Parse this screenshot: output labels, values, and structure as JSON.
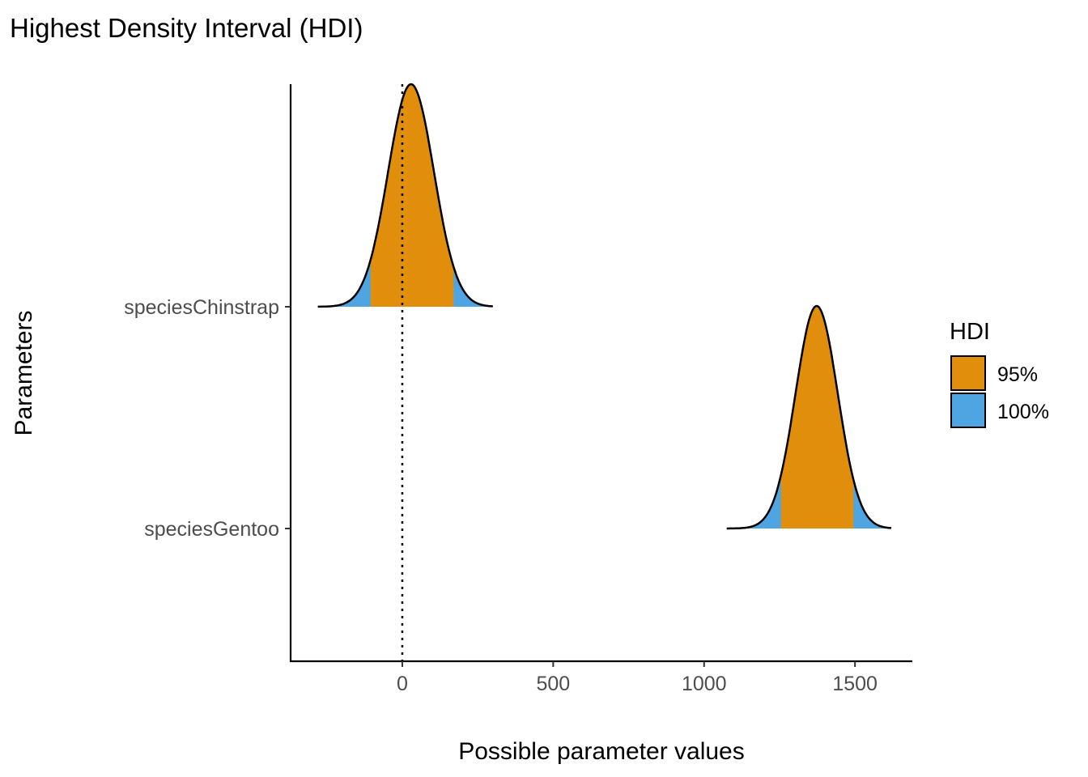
{
  "chart_data": {
    "type": "area",
    "title": "Highest Density Interval (HDI)",
    "xlabel": "Possible parameter values",
    "ylabel": "Parameters",
    "xlim": [
      -370,
      1690
    ],
    "x_ticks": [
      0,
      500,
      1000,
      1500
    ],
    "x_tick_labels": [
      "0",
      "500",
      "1000",
      "1500"
    ],
    "reference_line": {
      "x": 0,
      "style": "dotted"
    },
    "grid": false,
    "legend": {
      "title": "HDI",
      "placement": "right",
      "entries": [
        {
          "label": "95%",
          "color": "#E08E0B"
        },
        {
          "label": "100%",
          "color": "#4EA5E2"
        }
      ]
    },
    "series": [
      {
        "name": "speciesChinstrap",
        "mode": 29,
        "sd": 76,
        "min": -280,
        "max": 300,
        "hdi95": [
          -105,
          170
        ]
      },
      {
        "name": "speciesGentoo",
        "mode": 1373,
        "sd": 70,
        "min": 1075,
        "max": 1620,
        "hdi95": [
          1255,
          1495
        ]
      }
    ],
    "outline_color": "#000000"
  }
}
